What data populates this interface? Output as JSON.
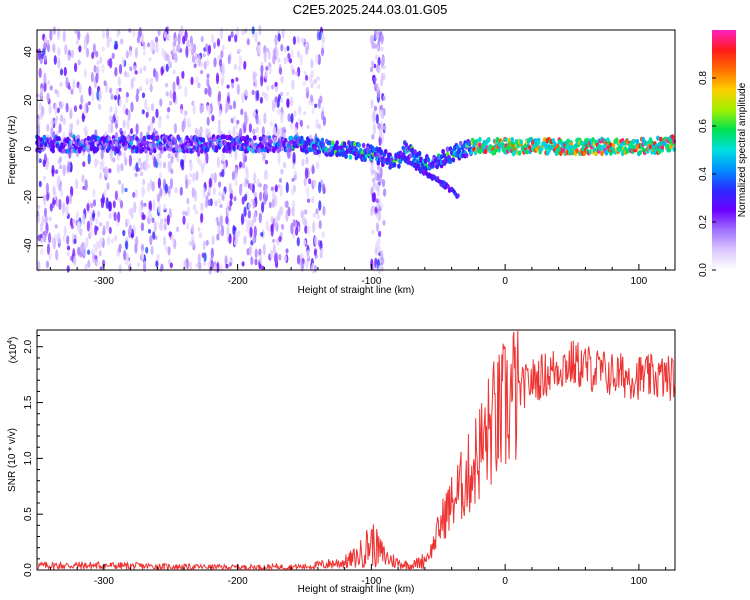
{
  "figure_title": "C2E5.2025.244.03.01.G05",
  "colors": {
    "snr_line": "#ee3333",
    "axis": "#000000",
    "colormap": [
      "#ffffff",
      "#dcc8ff",
      "#a070ff",
      "#6a00ff",
      "#2a2aff",
      "#0090ff",
      "#00e0e0",
      "#00e050",
      "#a0f000",
      "#ffd000",
      "#ff7000",
      "#ff1a1a",
      "#ff20c0"
    ]
  },
  "chart_data": [
    {
      "type": "heatmap",
      "title": "",
      "xlabel": "Height of straight line (km)",
      "ylabel": "Frequency (Hz)",
      "xlim": [
        -350,
        127
      ],
      "ylim": [
        -50,
        49
      ],
      "xticks": [
        -300,
        -200,
        -100,
        0,
        100
      ],
      "yticks": [
        -40,
        -20,
        0,
        20,
        40
      ],
      "xtick_labels": [
        "-300",
        "-200",
        "-100",
        "0",
        "100"
      ],
      "ytick_labels": [
        "-40",
        "-20",
        "0",
        "20",
        "40"
      ],
      "colorbar": {
        "label": "Normalized spectral amplitude",
        "range": [
          0,
          1
        ],
        "ticks": [
          0.0,
          0.2,
          0.4,
          0.6,
          0.8
        ],
        "tick_labels": [
          "0.0",
          "0.2",
          "0.4",
          "0.6",
          "0.8"
        ]
      },
      "ridge": {
        "x": [
          -350,
          -200,
          -160,
          -140,
          -120,
          -100,
          -90,
          -80,
          -75,
          -70,
          -60,
          -50,
          -40,
          -30,
          -20,
          0,
          50,
          100,
          127
        ],
        "freq": [
          2,
          2,
          2,
          1,
          0,
          -2,
          -4,
          -6,
          0,
          -2,
          -6,
          -5,
          -2,
          0,
          1,
          1,
          1,
          1,
          2
        ]
      },
      "branch": {
        "x": [
          -80,
          -70,
          -60,
          -50,
          -45,
          -40,
          -35
        ],
        "freq": [
          -2,
          -6,
          -10,
          -13,
          -15,
          -17,
          -20
        ]
      },
      "noise_region_x": [
        -350,
        -160
      ],
      "spike_x": -95
    },
    {
      "type": "line",
      "title": "",
      "xlabel": "Height of straight line (km)",
      "ylabel": "SNR (10 * v/v)",
      "y_multiplier": "(x10",
      "y_multiplier_exp": "4",
      "y_multiplier_close": ")",
      "xlim": [
        -350,
        127
      ],
      "ylim": [
        0,
        21500
      ],
      "xticks": [
        -300,
        -200,
        -100,
        0,
        100
      ],
      "yticks": [
        0,
        5000,
        10000,
        15000,
        20000
      ],
      "xtick_labels": [
        "-300",
        "-200",
        "-100",
        "0",
        "100"
      ],
      "ytick_labels": [
        "0.0",
        "0.5",
        "1.0",
        "1.5",
        "2.0"
      ],
      "series": [
        {
          "x": [
            -350,
            -300,
            -250,
            -200,
            -150,
            -120,
            -110,
            -100,
            -95,
            -90,
            -80,
            -70,
            -60,
            -55,
            -50,
            -45,
            -40,
            -35,
            -30,
            -25,
            -20,
            -15,
            -10,
            -5,
            0,
            5,
            10,
            15,
            20,
            25,
            30,
            35,
            40,
            50,
            60,
            70,
            80,
            100,
            127
          ],
          "y": [
            400,
            400,
            300,
            250,
            300,
            700,
            1200,
            2500,
            1800,
            1200,
            600,
            400,
            900,
            1800,
            3500,
            5000,
            6000,
            7000,
            8000,
            9000,
            10500,
            11500,
            13000,
            13500,
            14500,
            15500,
            16000,
            16500,
            17000,
            17200,
            17500,
            17800,
            18200,
            18500,
            18200,
            17800,
            17500,
            17300,
            17200
          ]
        }
      ]
    }
  ]
}
